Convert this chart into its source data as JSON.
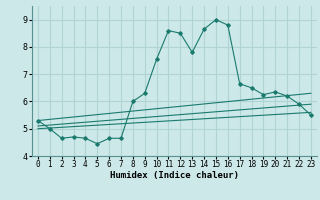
{
  "xlabel": "Humidex (Indice chaleur)",
  "xlim": [
    -0.5,
    23.5
  ],
  "ylim": [
    4.0,
    9.5
  ],
  "yticks": [
    4,
    5,
    6,
    7,
    8,
    9
  ],
  "xticks": [
    0,
    1,
    2,
    3,
    4,
    5,
    6,
    7,
    8,
    9,
    10,
    11,
    12,
    13,
    14,
    15,
    16,
    17,
    18,
    19,
    20,
    21,
    22,
    23
  ],
  "bg_color": "#cce8e8",
  "line_color": "#1a7a6e",
  "grid_color": "#b0d4d4",
  "lines": [
    {
      "x": [
        0,
        1,
        2,
        3,
        4,
        5,
        6,
        7,
        8,
        9,
        10,
        11,
        12,
        13,
        14,
        15,
        16,
        17,
        18,
        19,
        20,
        21,
        22,
        23
      ],
      "y": [
        5.3,
        5.0,
        4.65,
        4.7,
        4.65,
        4.45,
        4.65,
        4.65,
        6.0,
        6.3,
        7.55,
        8.6,
        8.5,
        7.8,
        8.65,
        9.0,
        8.8,
        6.65,
        6.5,
        6.25,
        6.35,
        6.2,
        5.9,
        5.5
      ],
      "markers": true
    },
    {
      "x": [
        0,
        23
      ],
      "y": [
        5.3,
        6.3
      ],
      "markers": false
    },
    {
      "x": [
        0,
        23
      ],
      "y": [
        5.1,
        5.9
      ],
      "markers": false
    },
    {
      "x": [
        0,
        23
      ],
      "y": [
        5.0,
        5.6
      ],
      "markers": false
    }
  ]
}
